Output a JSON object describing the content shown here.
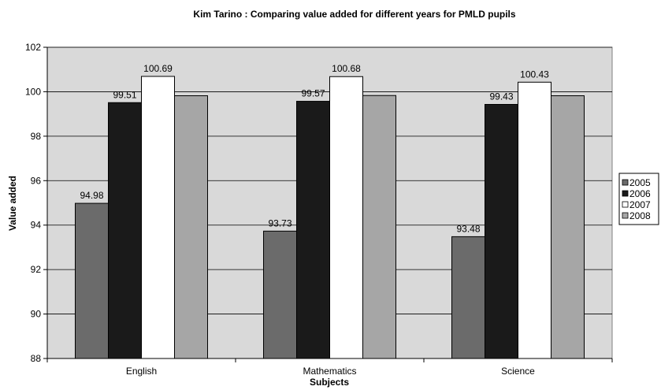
{
  "chart_data": {
    "type": "bar",
    "title": "Kim Tarino : Comparing value added for different years for PMLD pupils",
    "xlabel": "Subjects",
    "ylabel": "Value added",
    "ylim": [
      88,
      102
    ],
    "yticks": [
      88,
      90,
      92,
      94,
      96,
      98,
      100,
      102
    ],
    "grid": true,
    "legend_position": "right",
    "plot_background": "#d9d9d9",
    "categories": [
      "English",
      "Mathematics",
      "Science"
    ],
    "series": [
      {
        "name": "2005",
        "color": "#6b6b6b",
        "values": [
          94.98,
          93.73,
          93.48
        ],
        "labels": [
          "94.98",
          "93.73",
          "93.48"
        ]
      },
      {
        "name": "2006",
        "color": "#1a1a1a",
        "values": [
          99.51,
          99.57,
          99.43
        ],
        "labels": [
          "99.51",
          "99.57",
          "99.43"
        ]
      },
      {
        "name": "2007",
        "color": "#ffffff",
        "values": [
          100.69,
          100.68,
          100.43
        ],
        "labels": [
          "100.69",
          "100.68",
          "100.43"
        ]
      },
      {
        "name": "2008",
        "color": "#a6a6a6",
        "values": [
          99.82,
          99.83,
          99.82
        ],
        "labels": [
          "",
          "",
          ""
        ]
      }
    ]
  }
}
